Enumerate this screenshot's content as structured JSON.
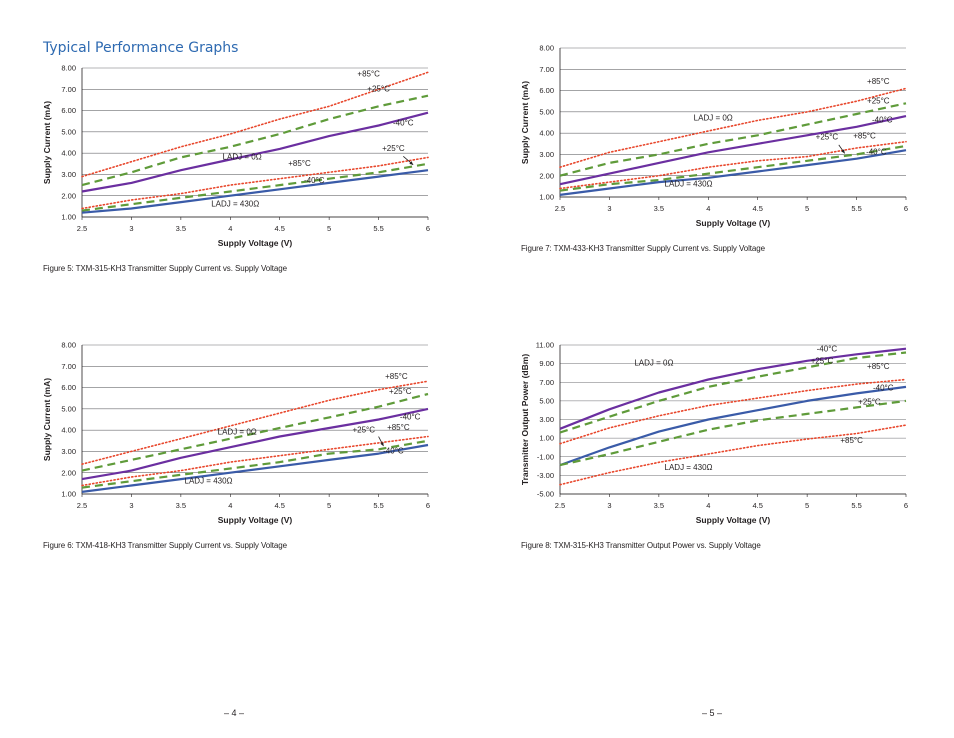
{
  "section_title": "Typical Performance Graphs",
  "page_numbers": [
    "– 4 –",
    "– 5 –"
  ],
  "captions": [
    "Figure 5: TXM-315-KH3 Transmitter Supply Current vs. Supply Voltage",
    "Figure 7: TXM-433-KH3 Transmitter Supply Current vs. Supply Voltage",
    "Figure 6: TXM-418-KH3 Transmitter Supply Current vs. Supply Voltage",
    "Figure 8: TXM-315-KH3 Transmitter Output Power vs. Supply Voltage"
  ],
  "series_styles": {
    "+85°C": {
      "color": "#e8462b",
      "dash": "dotted"
    },
    "+25°C": {
      "color": "#5f9b3a",
      "dash": "dashed"
    },
    "-40°C (LADJ = 0Ω)": {
      "color": "#6b2fa0",
      "dash": "solid"
    },
    "-40°C (LADJ = 430Ω)": {
      "color": "#3a5ba8",
      "dash": "solid"
    }
  },
  "chart_data": [
    {
      "type": "line",
      "xlabel": "Supply Voltage (V)",
      "ylabel": "Supply Current (mA)",
      "xlim": [
        2.5,
        6
      ],
      "ylim": [
        1,
        8
      ],
      "xticks": [
        "2.5",
        "3",
        "3.5",
        "4",
        "4.5",
        "5",
        "5.5",
        "6"
      ],
      "yticks": [
        "1.00",
        "2.00",
        "3.00",
        "4.00",
        "5.00",
        "6.00",
        "7.00",
        "8.00"
      ],
      "x": [
        2.5,
        3,
        3.5,
        4,
        4.5,
        5,
        5.5,
        6
      ],
      "series": [
        {
          "name": "+85°C",
          "style": "+85°C",
          "values": [
            2.9,
            3.6,
            4.3,
            4.9,
            5.6,
            6.2,
            7.0,
            7.8
          ]
        },
        {
          "name": "+25°C",
          "style": "+25°C",
          "values": [
            2.5,
            3.1,
            3.8,
            4.3,
            4.9,
            5.6,
            6.2,
            6.7
          ]
        },
        {
          "name": "-40°C",
          "style": "-40°C (LADJ = 0Ω)",
          "values": [
            2.2,
            2.6,
            3.2,
            3.7,
            4.2,
            4.8,
            5.3,
            5.9
          ]
        },
        {
          "name": "+85°C",
          "style": "+85°C",
          "values": [
            1.4,
            1.8,
            2.1,
            2.5,
            2.8,
            3.1,
            3.4,
            3.8
          ]
        },
        {
          "name": "+25°C",
          "style": "+25°C",
          "values": [
            1.3,
            1.6,
            1.9,
            2.2,
            2.5,
            2.8,
            3.1,
            3.5
          ]
        },
        {
          "name": "-40°C",
          "style": "-40°C (LADJ = 430Ω)",
          "values": [
            1.2,
            1.4,
            1.7,
            2.0,
            2.3,
            2.6,
            2.9,
            3.2
          ]
        }
      ],
      "annotations": [
        {
          "text": "+85°C",
          "x": 5.4,
          "y": 7.6
        },
        {
          "text": "+25°C",
          "x": 5.5,
          "y": 6.9
        },
        {
          "text": "-40°C",
          "x": 5.75,
          "y": 5.3
        },
        {
          "text": "+25°C",
          "x": 5.65,
          "y": 4.1
        },
        {
          "text": "LADJ = 0Ω",
          "x": 4.12,
          "y": 3.7
        },
        {
          "text": "+85°C",
          "x": 4.7,
          "y": 3.4
        },
        {
          "text": "-40°C",
          "x": 4.85,
          "y": 2.6
        },
        {
          "text": "LADJ = 430Ω",
          "x": 4.05,
          "y": 1.5
        }
      ],
      "arrows": [
        {
          "x1": 5.75,
          "y1": 3.85,
          "x2": 5.85,
          "y2": 3.45
        }
      ]
    },
    {
      "type": "line",
      "xlabel": "Supply Voltage (V)",
      "ylabel": "Supply Current (mA)",
      "xlim": [
        2.5,
        6
      ],
      "ylim": [
        1,
        8
      ],
      "xticks": [
        "2.5",
        "3",
        "3.5",
        "4",
        "4.5",
        "5",
        "5.5",
        "6"
      ],
      "yticks": [
        "1.00",
        "2.00",
        "3.00",
        "4.00",
        "5.00",
        "6.00",
        "7.00",
        "8.00"
      ],
      "x": [
        2.5,
        3,
        3.5,
        4,
        4.5,
        5,
        5.5,
        6
      ],
      "series": [
        {
          "name": "+85°C",
          "style": "+85°C",
          "values": [
            2.4,
            3.1,
            3.6,
            4.1,
            4.6,
            5.0,
            5.5,
            6.1
          ]
        },
        {
          "name": "+25°C",
          "style": "+25°C",
          "values": [
            2.0,
            2.6,
            3.0,
            3.5,
            3.9,
            4.4,
            4.9,
            5.4
          ]
        },
        {
          "name": "-40°C",
          "style": "-40°C (LADJ = 0Ω)",
          "values": [
            1.6,
            2.1,
            2.6,
            3.1,
            3.5,
            3.9,
            4.3,
            4.8
          ]
        },
        {
          "name": "+85°C",
          "style": "+85°C",
          "values": [
            1.4,
            1.7,
            2.0,
            2.4,
            2.7,
            2.9,
            3.3,
            3.6
          ]
        },
        {
          "name": "+25°C",
          "style": "+25°C",
          "values": [
            1.3,
            1.6,
            1.8,
            2.1,
            2.4,
            2.7,
            3.0,
            3.4
          ]
        },
        {
          "name": "-40°C",
          "style": "-40°C (LADJ = 430Ω)",
          "values": [
            1.1,
            1.4,
            1.7,
            1.9,
            2.2,
            2.5,
            2.8,
            3.2
          ]
        }
      ],
      "annotations": [
        {
          "text": "+85°C",
          "x": 5.72,
          "y": 6.3
        },
        {
          "text": "+25°C",
          "x": 5.72,
          "y": 5.4
        },
        {
          "text": "LADJ = 0Ω",
          "x": 4.05,
          "y": 4.6
        },
        {
          "text": "-40°C",
          "x": 5.76,
          "y": 4.5
        },
        {
          "text": "+25°C",
          "x": 5.2,
          "y": 3.7
        },
        {
          "text": "+85°C",
          "x": 5.58,
          "y": 3.75
        },
        {
          "text": "-40°C",
          "x": 5.7,
          "y": 3.0
        },
        {
          "text": "LADJ = 430Ω",
          "x": 3.8,
          "y": 1.5
        }
      ],
      "arrows": [
        {
          "x1": 5.32,
          "y1": 3.45,
          "x2": 5.38,
          "y2": 3.05
        }
      ]
    },
    {
      "type": "line",
      "xlabel": "Supply Voltage (V)",
      "ylabel": "Supply Current (mA)",
      "xlim": [
        2.5,
        6
      ],
      "ylim": [
        1,
        8
      ],
      "xticks": [
        "2.5",
        "3",
        "3.5",
        "4",
        "4.5",
        "5",
        "5.5",
        "6"
      ],
      "yticks": [
        "1.00",
        "2.00",
        "3.00",
        "4.00",
        "5.00",
        "6.00",
        "7.00",
        "8.00"
      ],
      "x": [
        2.5,
        3,
        3.5,
        4,
        4.5,
        5,
        5.5,
        6
      ],
      "series": [
        {
          "name": "+85°C",
          "style": "+85°C",
          "values": [
            2.4,
            3.0,
            3.6,
            4.2,
            4.8,
            5.4,
            5.9,
            6.3
          ]
        },
        {
          "name": "+25°C",
          "style": "+25°C",
          "values": [
            2.1,
            2.6,
            3.1,
            3.6,
            4.1,
            4.6,
            5.1,
            5.7
          ]
        },
        {
          "name": "-40°C",
          "style": "-40°C (LADJ = 0Ω)",
          "values": [
            1.7,
            2.1,
            2.7,
            3.2,
            3.7,
            4.1,
            4.5,
            5.0
          ]
        },
        {
          "name": "+85°C",
          "style": "+85°C",
          "values": [
            1.4,
            1.8,
            2.1,
            2.5,
            2.8,
            3.1,
            3.4,
            3.7
          ]
        },
        {
          "name": "+25°C",
          "style": "+25°C",
          "values": [
            1.3,
            1.6,
            1.9,
            2.2,
            2.5,
            2.9,
            3.1,
            3.5
          ]
        },
        {
          "name": "-40°C",
          "style": "-40°C (LADJ = 430Ω)",
          "values": [
            1.1,
            1.4,
            1.7,
            2.0,
            2.3,
            2.6,
            2.9,
            3.3
          ]
        }
      ],
      "annotations": [
        {
          "text": "+85°C",
          "x": 5.68,
          "y": 6.4
        },
        {
          "text": "+25°C",
          "x": 5.72,
          "y": 5.7
        },
        {
          "text": "-40°C",
          "x": 5.82,
          "y": 4.5
        },
        {
          "text": "LADJ = 0Ω",
          "x": 4.07,
          "y": 3.8
        },
        {
          "text": "+25°C",
          "x": 5.35,
          "y": 3.9
        },
        {
          "text": "+85°C",
          "x": 5.7,
          "y": 4.0
        },
        {
          "text": "-40°C",
          "x": 5.65,
          "y": 2.9
        },
        {
          "text": "LADJ = 430Ω",
          "x": 3.78,
          "y": 1.5
        }
      ],
      "arrows": [
        {
          "x1": 5.5,
          "y1": 3.7,
          "x2": 5.55,
          "y2": 3.25
        }
      ]
    },
    {
      "type": "line",
      "xlabel": "Supply Voltage (V)",
      "ylabel": "Transmitter Output Power (dBm)",
      "xlim": [
        2.5,
        6
      ],
      "ylim": [
        -5,
        11
      ],
      "xticks": [
        "2.5",
        "3",
        "3.5",
        "4",
        "4.5",
        "5",
        "5.5",
        "6"
      ],
      "yticks": [
        "-5.00",
        "-3.00",
        "-1.00",
        "1.00",
        "3.00",
        "5.00",
        "7.00",
        "9.00",
        "11.00"
      ],
      "x": [
        2.5,
        3,
        3.5,
        4,
        4.5,
        5,
        5.5,
        6
      ],
      "series": [
        {
          "name": "-40°C",
          "style": "-40°C (LADJ = 0Ω)",
          "values": [
            2.0,
            4.1,
            5.9,
            7.3,
            8.4,
            9.3,
            10.0,
            10.6
          ]
        },
        {
          "name": "+25°C",
          "style": "+25°C",
          "values": [
            1.6,
            3.3,
            5.0,
            6.5,
            7.6,
            8.6,
            9.6,
            10.2
          ]
        },
        {
          "name": "+85°C",
          "style": "+85°C",
          "values": [
            0.4,
            2.1,
            3.4,
            4.5,
            5.3,
            6.1,
            6.8,
            7.3
          ]
        },
        {
          "name": "-40°C",
          "style": "-40°C (LADJ = 430Ω)",
          "values": [
            -1.9,
            0.0,
            1.7,
            3.0,
            4.0,
            5.0,
            5.8,
            6.5
          ]
        },
        {
          "name": "+25°C",
          "style": "+25°C",
          "values": [
            -1.9,
            -0.7,
            0.6,
            1.9,
            2.9,
            3.6,
            4.3,
            5.0
          ]
        },
        {
          "name": "+85°C",
          "style": "+85°C",
          "values": [
            -4.0,
            -2.7,
            -1.6,
            -0.7,
            0.2,
            0.9,
            1.5,
            2.4
          ]
        }
      ],
      "annotations": [
        {
          "text": "-40°C",
          "x": 5.2,
          "y": 10.3
        },
        {
          "text": "+25°C",
          "x": 5.15,
          "y": 9.0
        },
        {
          "text": "LADJ = 0Ω",
          "x": 3.45,
          "y": 8.8
        },
        {
          "text": "+85°C",
          "x": 5.72,
          "y": 8.4
        },
        {
          "text": "-40°C",
          "x": 5.77,
          "y": 6.1
        },
        {
          "text": "+25°C",
          "x": 5.63,
          "y": 4.6
        },
        {
          "text": "+85°C",
          "x": 5.45,
          "y": 0.5
        },
        {
          "text": "LADJ = 430Ω",
          "x": 3.8,
          "y": -2.4
        }
      ],
      "arrows": []
    }
  ]
}
